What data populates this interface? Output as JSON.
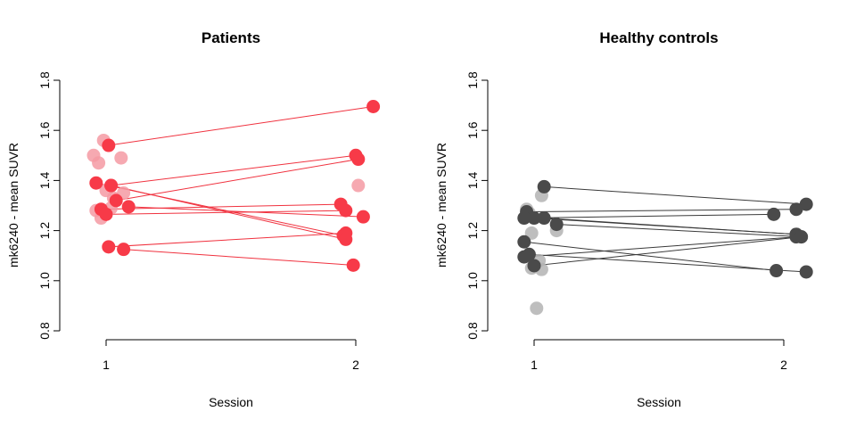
{
  "colors": {
    "patients_line": "#f0323f",
    "patients_point": "#f73a48",
    "patients_point_faded": "#f59aa3",
    "controls_line": "#3a3a3a",
    "controls_point": "#4a4a4a",
    "controls_point_faded": "#b3b3b3",
    "axis": "#000000"
  },
  "chart_data": [
    {
      "type": "scatter",
      "title": "Patients",
      "xlabel": "Session",
      "ylabel": "mk6240 - mean SUVR",
      "xlim": [
        0.85,
        2.15
      ],
      "ylim": [
        0.8,
        1.8
      ],
      "xticks": [
        "1",
        "2"
      ],
      "yticks": [
        "0.8",
        "1.0",
        "1.2",
        "1.4",
        "1.6",
        "1.8"
      ],
      "faded_points_session1": [
        {
          "x": 0.95,
          "y": 1.5
        },
        {
          "x": 0.97,
          "y": 1.47
        },
        {
          "x": 0.99,
          "y": 1.56
        },
        {
          "x": 1.0,
          "y": 1.36
        },
        {
          "x": 1.06,
          "y": 1.49
        },
        {
          "x": 1.07,
          "y": 1.35
        },
        {
          "x": 1.03,
          "y": 1.33
        },
        {
          "x": 0.98,
          "y": 1.25
        },
        {
          "x": 0.96,
          "y": 1.28
        },
        {
          "x": 1.02,
          "y": 1.29
        }
      ],
      "faded_points_session2": [
        {
          "x": 2.01,
          "y": 1.38
        }
      ],
      "paired": [
        {
          "s1": {
            "x": 1.01,
            "y": 1.54
          },
          "s2": {
            "x": 2.07,
            "y": 1.695
          }
        },
        {
          "s1": {
            "x": 1.02,
            "y": 1.38
          },
          "s2": {
            "x": 2.0,
            "y": 1.5
          }
        },
        {
          "s1": {
            "x": 0.96,
            "y": 1.39
          },
          "s2": {
            "x": 1.95,
            "y": 1.18
          }
        },
        {
          "s1": {
            "x": 0.98,
            "y": 1.285
          },
          "s2": {
            "x": 1.94,
            "y": 1.305
          }
        },
        {
          "s1": {
            "x": 1.04,
            "y": 1.32
          },
          "s2": {
            "x": 2.01,
            "y": 1.485
          }
        },
        {
          "s1": {
            "x": 1.0,
            "y": 1.265
          },
          "s2": {
            "x": 1.96,
            "y": 1.28
          }
        },
        {
          "s1": {
            "x": 1.09,
            "y": 1.295
          },
          "s2": {
            "x": 2.03,
            "y": 1.255
          }
        },
        {
          "s1": {
            "x": 1.01,
            "y": 1.135
          },
          "s2": {
            "x": 1.96,
            "y": 1.19
          }
        },
        {
          "s1": {
            "x": 1.07,
            "y": 1.125
          },
          "s2": {
            "x": 1.99,
            "y": 1.062
          }
        },
        {
          "s1": {
            "x": 1.02,
            "y": 1.38
          },
          "s2": {
            "x": 1.96,
            "y": 1.165
          }
        }
      ]
    },
    {
      "type": "scatter",
      "title": "Healthy controls",
      "xlabel": "Session",
      "ylabel": "mk6240 - mean SUVR",
      "xlim": [
        0.85,
        2.15
      ],
      "ylim": [
        0.8,
        1.8
      ],
      "xticks": [
        "1",
        "2"
      ],
      "yticks": [
        "0.8",
        "1.0",
        "1.2",
        "1.4",
        "1.6",
        "1.8"
      ],
      "faded_points_session1": [
        {
          "x": 0.97,
          "y": 1.285
        },
        {
          "x": 0.98,
          "y": 1.27
        },
        {
          "x": 0.99,
          "y": 1.19
        },
        {
          "x": 1.03,
          "y": 1.34
        },
        {
          "x": 1.09,
          "y": 1.2
        },
        {
          "x": 0.99,
          "y": 1.05
        },
        {
          "x": 1.0,
          "y": 1.06
        },
        {
          "x": 1.02,
          "y": 1.08
        },
        {
          "x": 1.03,
          "y": 1.045
        },
        {
          "x": 1.01,
          "y": 0.89
        }
      ],
      "faded_points_session2": [],
      "paired": [
        {
          "s1": {
            "x": 1.04,
            "y": 1.375
          },
          "s2": {
            "x": 2.09,
            "y": 1.305
          }
        },
        {
          "s1": {
            "x": 0.97,
            "y": 1.275
          },
          "s2": {
            "x": 2.05,
            "y": 1.285
          }
        },
        {
          "s1": {
            "x": 0.96,
            "y": 1.25
          },
          "s2": {
            "x": 1.96,
            "y": 1.265
          }
        },
        {
          "s1": {
            "x": 1.09,
            "y": 1.225
          },
          "s2": {
            "x": 2.07,
            "y": 1.175
          }
        },
        {
          "s1": {
            "x": 1.04,
            "y": 1.25
          },
          "s2": {
            "x": 2.05,
            "y": 1.185
          }
        },
        {
          "s1": {
            "x": 1.0,
            "y": 1.25
          },
          "s2": {
            "x": 2.05,
            "y": 1.185
          }
        },
        {
          "s1": {
            "x": 0.96,
            "y": 1.155
          },
          "s2": {
            "x": 1.97,
            "y": 1.04
          }
        },
        {
          "s1": {
            "x": 0.96,
            "y": 1.095
          },
          "s2": {
            "x": 2.05,
            "y": 1.175
          }
        },
        {
          "s1": {
            "x": 0.98,
            "y": 1.105
          },
          "s2": {
            "x": 2.09,
            "y": 1.035
          }
        },
        {
          "s1": {
            "x": 1.0,
            "y": 1.06
          },
          "s2": {
            "x": 2.07,
            "y": 1.175
          }
        }
      ]
    }
  ]
}
